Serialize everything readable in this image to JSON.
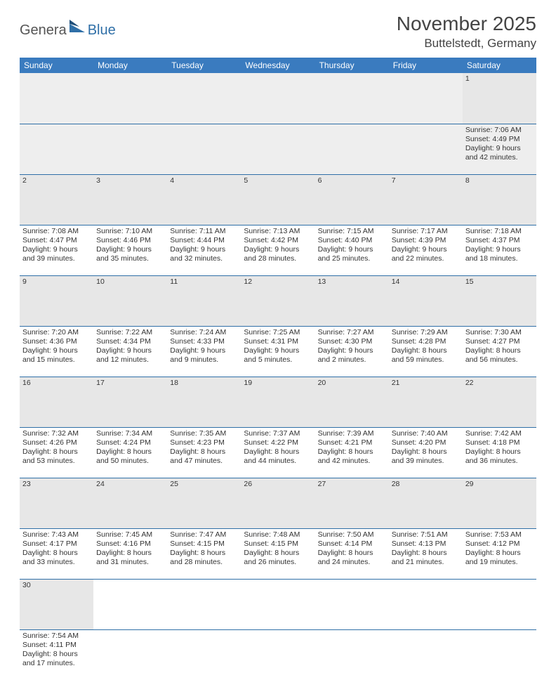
{
  "logo": {
    "part1": "Genera",
    "part2": "Blue"
  },
  "title": "November 2025",
  "location": "Buttelstedt, Germany",
  "colors": {
    "header_bg": "#3a7bbf",
    "header_text": "#ffffff",
    "row_divider": "#2f6fa7",
    "daynum_bg": "#e7e7e7",
    "blank_bg": "#eeeeee",
    "body_text": "#333333",
    "title_text": "#444444",
    "logo_accent": "#2f6fa7"
  },
  "weekdays": [
    "Sunday",
    "Monday",
    "Tuesday",
    "Wednesday",
    "Thursday",
    "Friday",
    "Saturday"
  ],
  "weeks": [
    [
      null,
      null,
      null,
      null,
      null,
      null,
      {
        "n": "1",
        "sr": "7:06 AM",
        "ss": "4:49 PM",
        "dl": "9 hours and 42 minutes."
      }
    ],
    [
      {
        "n": "2",
        "sr": "7:08 AM",
        "ss": "4:47 PM",
        "dl": "9 hours and 39 minutes."
      },
      {
        "n": "3",
        "sr": "7:10 AM",
        "ss": "4:46 PM",
        "dl": "9 hours and 35 minutes."
      },
      {
        "n": "4",
        "sr": "7:11 AM",
        "ss": "4:44 PM",
        "dl": "9 hours and 32 minutes."
      },
      {
        "n": "5",
        "sr": "7:13 AM",
        "ss": "4:42 PM",
        "dl": "9 hours and 28 minutes."
      },
      {
        "n": "6",
        "sr": "7:15 AM",
        "ss": "4:40 PM",
        "dl": "9 hours and 25 minutes."
      },
      {
        "n": "7",
        "sr": "7:17 AM",
        "ss": "4:39 PM",
        "dl": "9 hours and 22 minutes."
      },
      {
        "n": "8",
        "sr": "7:18 AM",
        "ss": "4:37 PM",
        "dl": "9 hours and 18 minutes."
      }
    ],
    [
      {
        "n": "9",
        "sr": "7:20 AM",
        "ss": "4:36 PM",
        "dl": "9 hours and 15 minutes."
      },
      {
        "n": "10",
        "sr": "7:22 AM",
        "ss": "4:34 PM",
        "dl": "9 hours and 12 minutes."
      },
      {
        "n": "11",
        "sr": "7:24 AM",
        "ss": "4:33 PM",
        "dl": "9 hours and 9 minutes."
      },
      {
        "n": "12",
        "sr": "7:25 AM",
        "ss": "4:31 PM",
        "dl": "9 hours and 5 minutes."
      },
      {
        "n": "13",
        "sr": "7:27 AM",
        "ss": "4:30 PM",
        "dl": "9 hours and 2 minutes."
      },
      {
        "n": "14",
        "sr": "7:29 AM",
        "ss": "4:28 PM",
        "dl": "8 hours and 59 minutes."
      },
      {
        "n": "15",
        "sr": "7:30 AM",
        "ss": "4:27 PM",
        "dl": "8 hours and 56 minutes."
      }
    ],
    [
      {
        "n": "16",
        "sr": "7:32 AM",
        "ss": "4:26 PM",
        "dl": "8 hours and 53 minutes."
      },
      {
        "n": "17",
        "sr": "7:34 AM",
        "ss": "4:24 PM",
        "dl": "8 hours and 50 minutes."
      },
      {
        "n": "18",
        "sr": "7:35 AM",
        "ss": "4:23 PM",
        "dl": "8 hours and 47 minutes."
      },
      {
        "n": "19",
        "sr": "7:37 AM",
        "ss": "4:22 PM",
        "dl": "8 hours and 44 minutes."
      },
      {
        "n": "20",
        "sr": "7:39 AM",
        "ss": "4:21 PM",
        "dl": "8 hours and 42 minutes."
      },
      {
        "n": "21",
        "sr": "7:40 AM",
        "ss": "4:20 PM",
        "dl": "8 hours and 39 minutes."
      },
      {
        "n": "22",
        "sr": "7:42 AM",
        "ss": "4:18 PM",
        "dl": "8 hours and 36 minutes."
      }
    ],
    [
      {
        "n": "23",
        "sr": "7:43 AM",
        "ss": "4:17 PM",
        "dl": "8 hours and 33 minutes."
      },
      {
        "n": "24",
        "sr": "7:45 AM",
        "ss": "4:16 PM",
        "dl": "8 hours and 31 minutes."
      },
      {
        "n": "25",
        "sr": "7:47 AM",
        "ss": "4:15 PM",
        "dl": "8 hours and 28 minutes."
      },
      {
        "n": "26",
        "sr": "7:48 AM",
        "ss": "4:15 PM",
        "dl": "8 hours and 26 minutes."
      },
      {
        "n": "27",
        "sr": "7:50 AM",
        "ss": "4:14 PM",
        "dl": "8 hours and 24 minutes."
      },
      {
        "n": "28",
        "sr": "7:51 AM",
        "ss": "4:13 PM",
        "dl": "8 hours and 21 minutes."
      },
      {
        "n": "29",
        "sr": "7:53 AM",
        "ss": "4:12 PM",
        "dl": "8 hours and 19 minutes."
      }
    ],
    [
      {
        "n": "30",
        "sr": "7:54 AM",
        "ss": "4:11 PM",
        "dl": "8 hours and 17 minutes."
      },
      null,
      null,
      null,
      null,
      null,
      null
    ]
  ],
  "labels": {
    "sunrise": "Sunrise:",
    "sunset": "Sunset:",
    "daylight": "Daylight:"
  }
}
